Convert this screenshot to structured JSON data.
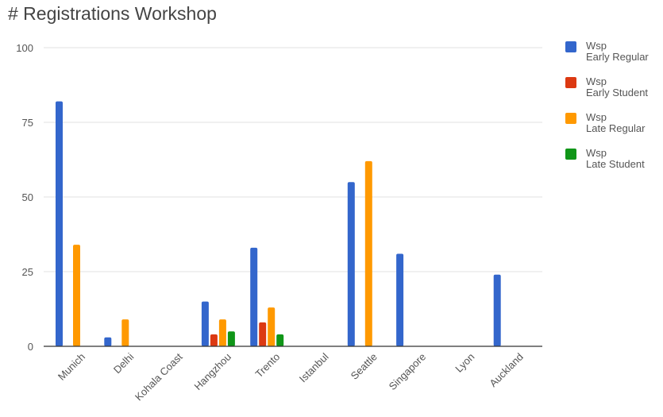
{
  "chart_data": {
    "type": "bar",
    "title": "# Registrations Workshop",
    "xlabel": "",
    "ylabel": "",
    "ylim": [
      0,
      100
    ],
    "yticks": [
      0,
      25,
      50,
      75,
      100
    ],
    "grid": true,
    "legend_position": "right",
    "categories": [
      "Munich",
      "Delhi",
      "Kohala Coast",
      "Hangzhou",
      "Trento",
      "Istanbul",
      "Seattle",
      "Singapore",
      "Lyon",
      "Auckland"
    ],
    "series": [
      {
        "name": [
          "Wsp",
          "Early Regular"
        ],
        "color": "#3366cc",
        "values": [
          82,
          3,
          0,
          15,
          33,
          0,
          55,
          31,
          0,
          24
        ]
      },
      {
        "name": [
          "Wsp",
          "Early Student"
        ],
        "color": "#dc3912",
        "values": [
          0,
          0,
          0,
          4,
          8,
          0,
          0,
          0,
          0,
          0
        ]
      },
      {
        "name": [
          "Wsp",
          "Late Regular"
        ],
        "color": "#ff9900",
        "values": [
          34,
          9,
          0,
          9,
          13,
          0,
          62,
          0,
          0,
          0
        ]
      },
      {
        "name": [
          "Wsp",
          "Late Student"
        ],
        "color": "#109618",
        "values": [
          0,
          0,
          0,
          5,
          4,
          0,
          0,
          0,
          0,
          0
        ]
      }
    ]
  }
}
